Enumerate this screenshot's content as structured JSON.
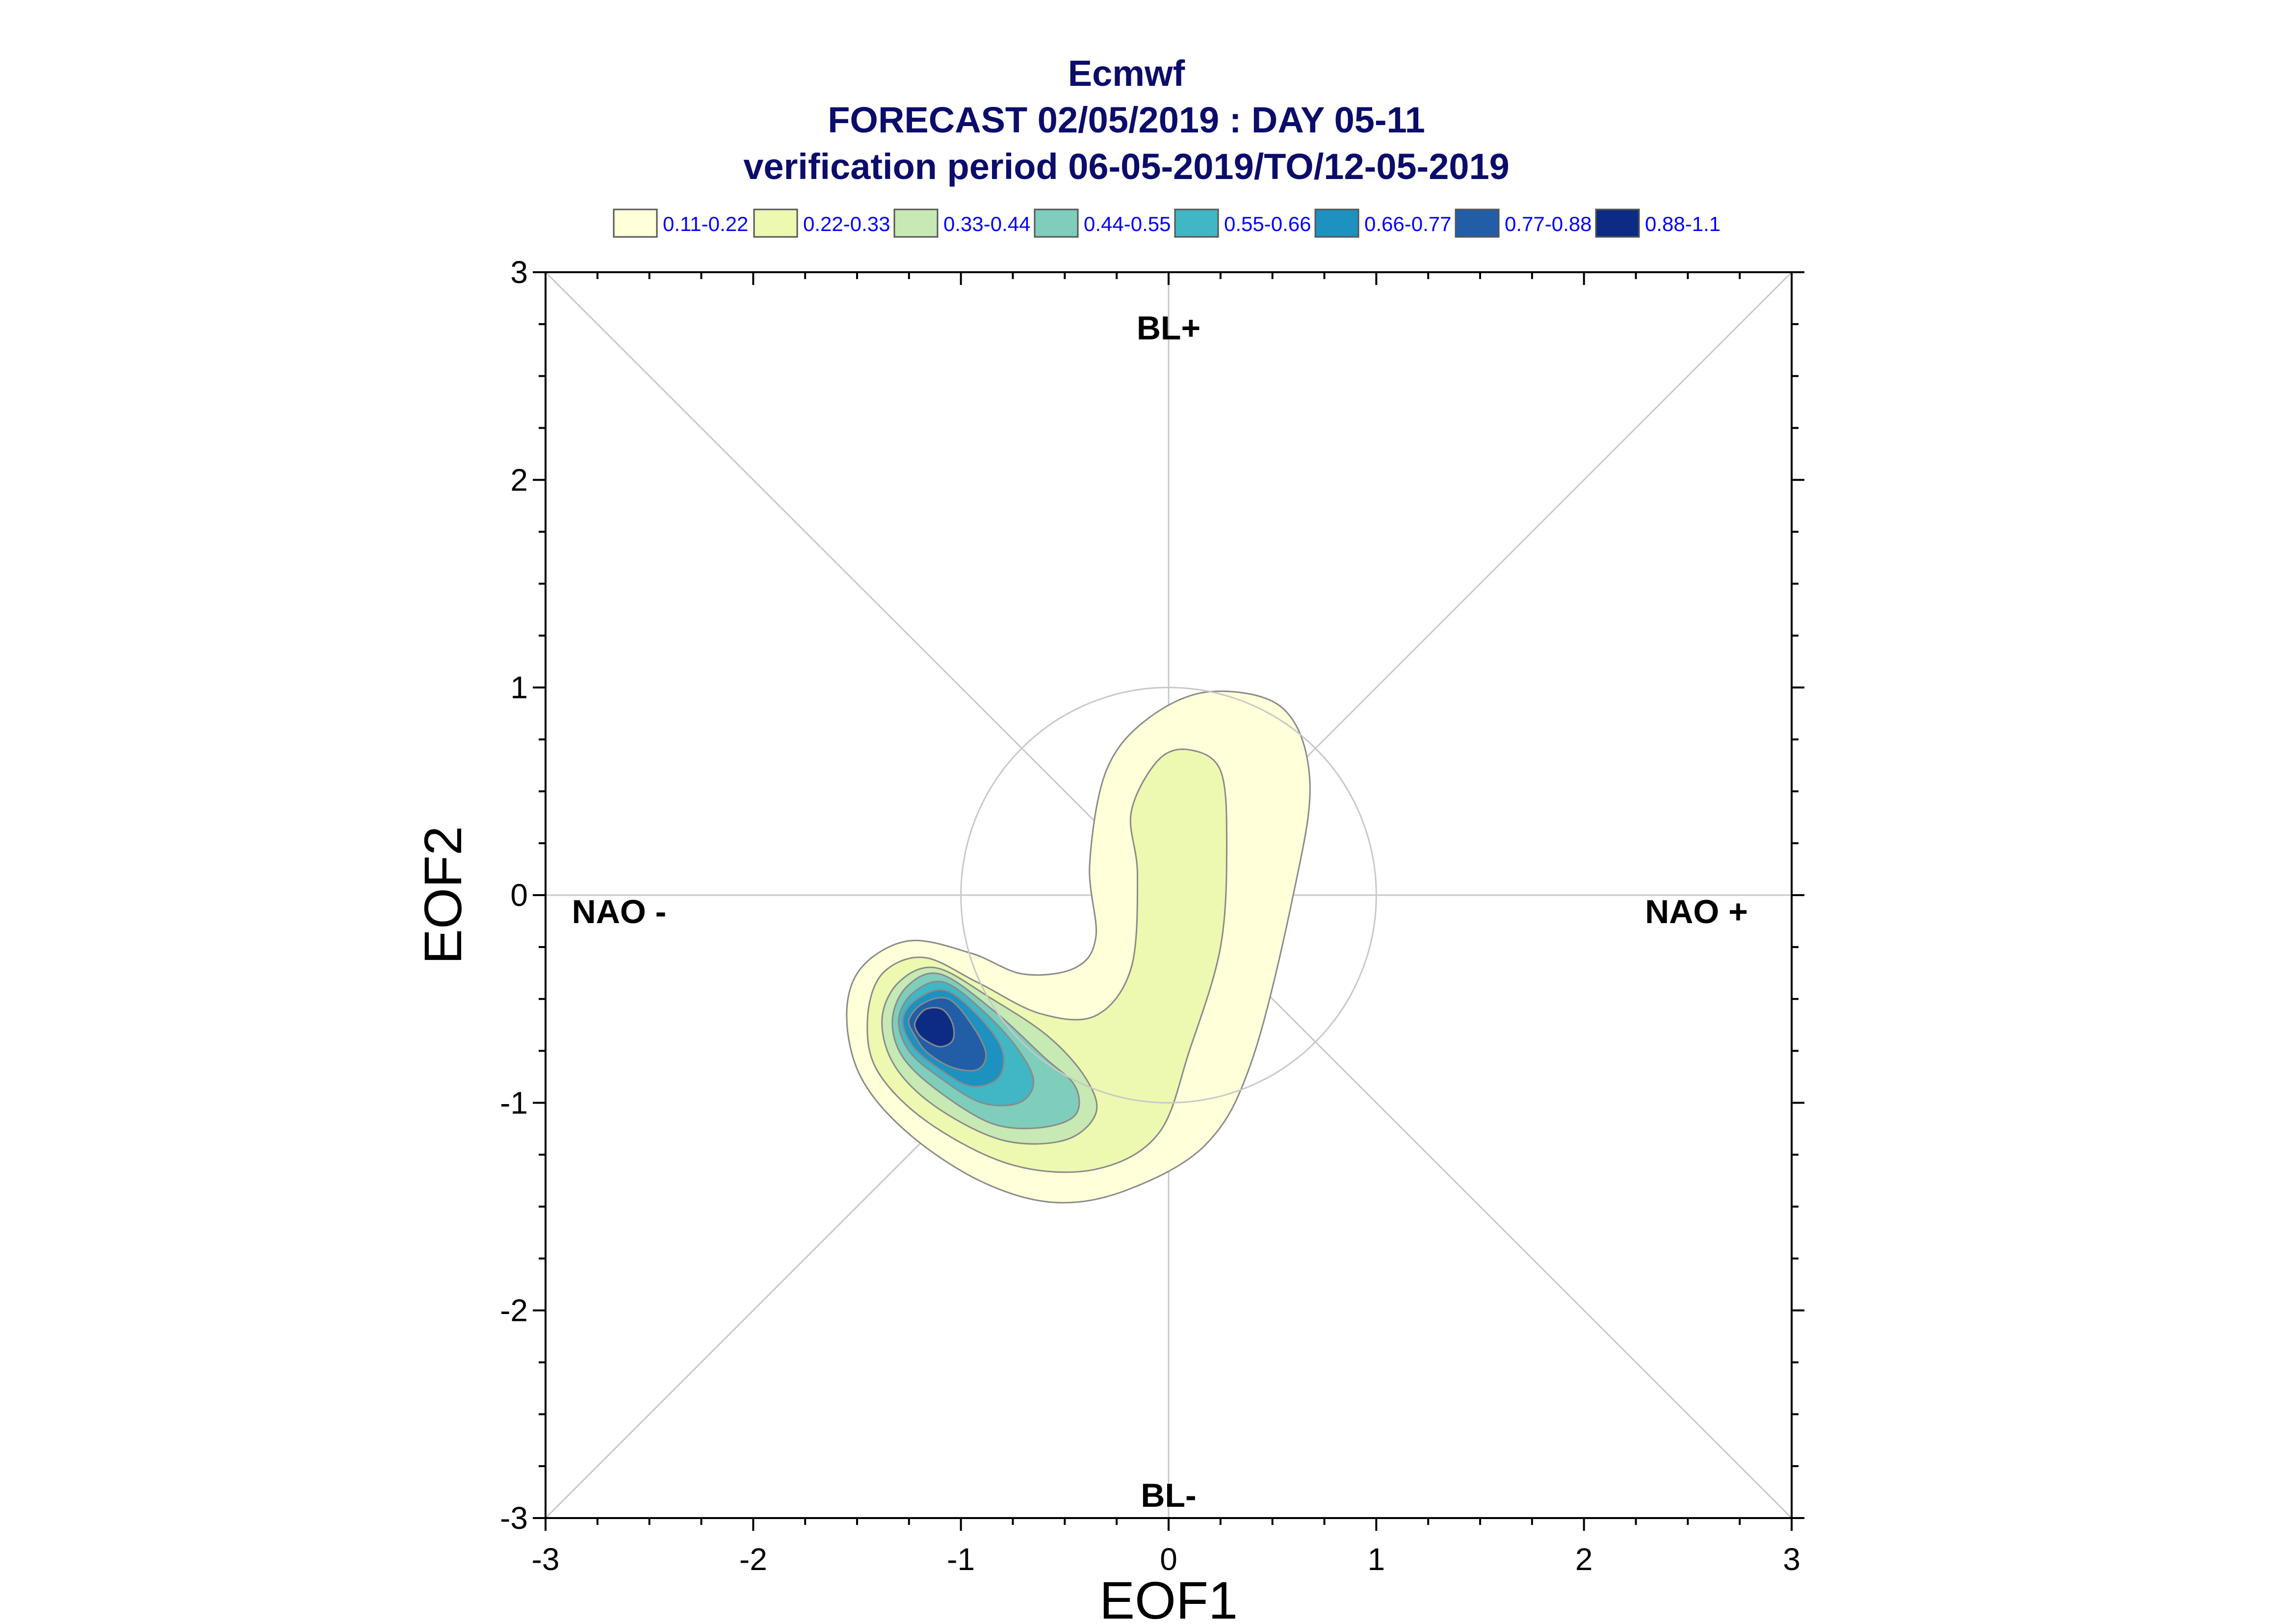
{
  "title": {
    "line1": "Ecmwf",
    "line2": "FORECAST 02/05/2019 : DAY 05-11",
    "line3": "verification period 06-05-2019/TO/12-05-2019"
  },
  "colors": {
    "title": "#0c0c6b",
    "legend_text": "#0000ff",
    "grid": "#c8c8c8",
    "contour_line": "#8a8a8a"
  },
  "chart_data": {
    "type": "contour-density",
    "xlabel": "EOF1",
    "ylabel": "EOF2",
    "xlim": [
      -3,
      3
    ],
    "ylim": [
      -3,
      3
    ],
    "xticks": [
      "-3",
      "-2",
      "-1",
      "0",
      "1",
      "2",
      "3"
    ],
    "yticks": [
      "-3",
      "-2",
      "-1",
      "0",
      "1",
      "2",
      "3"
    ],
    "reference_circle_radius": 1,
    "diagonals": true,
    "regime_labels": {
      "top": "BL+",
      "bottom": "BL-",
      "left": "NAO -",
      "right": "NAO +"
    },
    "legend": [
      {
        "label": "0.11-0.22",
        "color": "#ffffd9"
      },
      {
        "label": "0.22-0.33",
        "color": "#edf8b1"
      },
      {
        "label": "0.33-0.44",
        "color": "#c7e9b4"
      },
      {
        "label": "0.44-0.55",
        "color": "#7fcdbb"
      },
      {
        "label": "0.55-0.66",
        "color": "#41b6c4"
      },
      {
        "label": "0.66-0.77",
        "color": "#1d91c0"
      },
      {
        "label": "0.77-0.88",
        "color": "#225ea8"
      },
      {
        "label": "0.88-1.1",
        "color": "#0c2c84"
      }
    ],
    "contours": [
      {
        "level": "0.11-0.22",
        "points": [
          [
            -1.55,
            -0.58
          ],
          [
            -1.48,
            -0.35
          ],
          [
            -1.25,
            -0.22
          ],
          [
            -0.95,
            -0.28
          ],
          [
            -0.7,
            -0.38
          ],
          [
            -0.45,
            -0.35
          ],
          [
            -0.35,
            -0.2
          ],
          [
            -0.38,
            0.15
          ],
          [
            -0.3,
            0.6
          ],
          [
            -0.1,
            0.85
          ],
          [
            0.2,
            0.98
          ],
          [
            0.55,
            0.9
          ],
          [
            0.68,
            0.55
          ],
          [
            0.6,
            0.0
          ],
          [
            0.4,
            -0.8
          ],
          [
            0.18,
            -1.2
          ],
          [
            -0.2,
            -1.42
          ],
          [
            -0.55,
            -1.48
          ],
          [
            -0.9,
            -1.38
          ],
          [
            -1.25,
            -1.15
          ],
          [
            -1.48,
            -0.88
          ]
        ]
      },
      {
        "level": "0.22-0.33",
        "points": [
          [
            -1.45,
            -0.6
          ],
          [
            -1.38,
            -0.38
          ],
          [
            -1.18,
            -0.3
          ],
          [
            -0.92,
            -0.42
          ],
          [
            -0.62,
            -0.57
          ],
          [
            -0.35,
            -0.58
          ],
          [
            -0.18,
            -0.35
          ],
          [
            -0.15,
            0.1
          ],
          [
            -0.18,
            0.4
          ],
          [
            -0.05,
            0.65
          ],
          [
            0.1,
            0.7
          ],
          [
            0.25,
            0.6
          ],
          [
            0.28,
            0.25
          ],
          [
            0.25,
            -0.25
          ],
          [
            0.1,
            -0.75
          ],
          [
            -0.05,
            -1.15
          ],
          [
            -0.35,
            -1.32
          ],
          [
            -0.75,
            -1.3
          ],
          [
            -1.15,
            -1.1
          ],
          [
            -1.4,
            -0.85
          ]
        ]
      },
      {
        "level": "0.33-0.44",
        "points": [
          [
            -1.38,
            -0.6
          ],
          [
            -1.3,
            -0.42
          ],
          [
            -1.12,
            -0.35
          ],
          [
            -0.85,
            -0.5
          ],
          [
            -0.58,
            -0.68
          ],
          [
            -0.4,
            -0.88
          ],
          [
            -0.35,
            -1.05
          ],
          [
            -0.5,
            -1.18
          ],
          [
            -0.8,
            -1.18
          ],
          [
            -1.12,
            -1.02
          ],
          [
            -1.32,
            -0.82
          ]
        ]
      },
      {
        "level": "0.44-0.55",
        "points": [
          [
            -1.33,
            -0.6
          ],
          [
            -1.26,
            -0.44
          ],
          [
            -1.1,
            -0.38
          ],
          [
            -0.85,
            -0.55
          ],
          [
            -0.6,
            -0.78
          ],
          [
            -0.45,
            -0.92
          ],
          [
            -0.45,
            -1.06
          ],
          [
            -0.62,
            -1.12
          ],
          [
            -0.85,
            -1.1
          ],
          [
            -1.1,
            -0.95
          ],
          [
            -1.28,
            -0.78
          ]
        ]
      },
      {
        "level": "0.55-0.66",
        "points": [
          [
            -1.3,
            -0.6
          ],
          [
            -1.23,
            -0.47
          ],
          [
            -1.08,
            -0.42
          ],
          [
            -0.88,
            -0.57
          ],
          [
            -0.72,
            -0.75
          ],
          [
            -0.65,
            -0.9
          ],
          [
            -0.72,
            -1.0
          ],
          [
            -0.9,
            -1.0
          ],
          [
            -1.1,
            -0.88
          ],
          [
            -1.25,
            -0.75
          ]
        ]
      },
      {
        "level": "0.66-0.77",
        "points": [
          [
            -1.28,
            -0.6
          ],
          [
            -1.21,
            -0.5
          ],
          [
            -1.07,
            -0.46
          ],
          [
            -0.9,
            -0.6
          ],
          [
            -0.8,
            -0.75
          ],
          [
            -0.82,
            -0.88
          ],
          [
            -0.95,
            -0.92
          ],
          [
            -1.1,
            -0.84
          ],
          [
            -1.23,
            -0.73
          ]
        ]
      },
      {
        "level": "0.77-0.88",
        "points": [
          [
            -1.25,
            -0.6
          ],
          [
            -1.18,
            -0.52
          ],
          [
            -1.06,
            -0.5
          ],
          [
            -0.95,
            -0.62
          ],
          [
            -0.88,
            -0.76
          ],
          [
            -0.92,
            -0.84
          ],
          [
            -1.04,
            -0.83
          ],
          [
            -1.16,
            -0.76
          ],
          [
            -1.22,
            -0.68
          ]
        ]
      },
      {
        "level": "0.88-1.1",
        "points": [
          [
            -1.22,
            -0.61
          ],
          [
            -1.17,
            -0.55
          ],
          [
            -1.09,
            -0.55
          ],
          [
            -1.04,
            -0.62
          ],
          [
            -1.04,
            -0.7
          ],
          [
            -1.1,
            -0.73
          ],
          [
            -1.17,
            -0.7
          ],
          [
            -1.21,
            -0.66
          ]
        ]
      }
    ]
  }
}
